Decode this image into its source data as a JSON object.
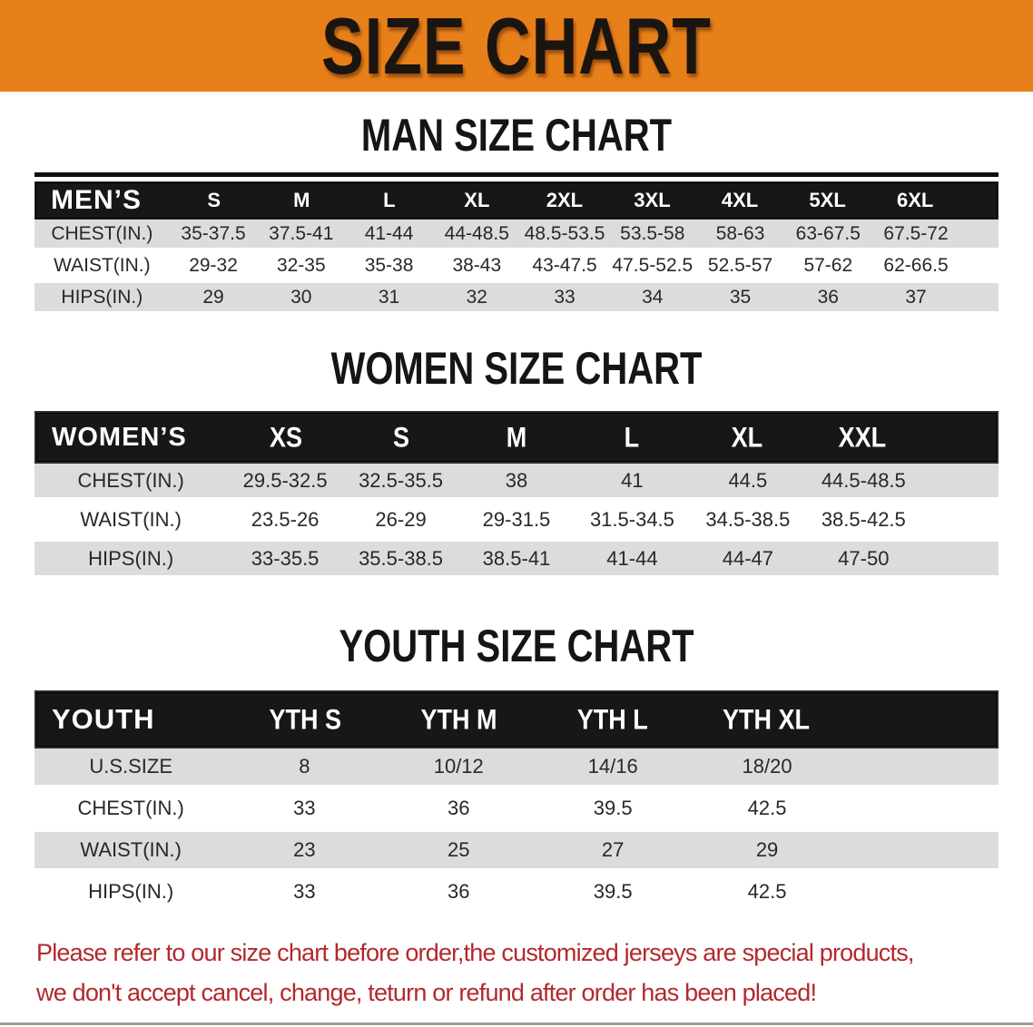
{
  "banner": {
    "title": "SIZE CHART"
  },
  "sections": [
    {
      "heading": "MAN SIZE CHART",
      "table": {
        "header_label": "MEN’S",
        "columns": [
          "S",
          "M",
          "L",
          "XL",
          "2XL",
          "3XL",
          "4XL",
          "5XL",
          "6XL"
        ],
        "rows": [
          {
            "label": "CHEST(IN.)",
            "values": [
              "35-37.5",
              "37.5-41",
              "41-44",
              "44-48.5",
              "48.5-53.5",
              "53.5-58",
              "58-63",
              "63-67.5",
              "67.5-72"
            ]
          },
          {
            "label": "WAIST(IN.)",
            "values": [
              "29-32",
              "32-35",
              "35-38",
              "38-43",
              "43-47.5",
              "47.5-52.5",
              "52.5-57",
              "57-62",
              "62-66.5"
            ]
          },
          {
            "label": "HIPS(IN.)",
            "values": [
              "29",
              "30",
              "31",
              "32",
              "33",
              "34",
              "35",
              "36",
              "37"
            ]
          }
        ]
      }
    },
    {
      "heading": "WOMEN SIZE CHART",
      "table": {
        "header_label": "WOMEN’S",
        "columns": [
          "XS",
          "S",
          "M",
          "L",
          "XL",
          "XXL"
        ],
        "rows": [
          {
            "label": "CHEST(IN.)",
            "values": [
              "29.5-32.5",
              "32.5-35.5",
              "38",
              "41",
              "44.5",
              "44.5-48.5"
            ]
          },
          {
            "label": "WAIST(IN.)",
            "values": [
              "23.5-26",
              "26-29",
              "29-31.5",
              "31.5-34.5",
              "34.5-38.5",
              "38.5-42.5"
            ]
          },
          {
            "label": "HIPS(IN.)",
            "values": [
              "33-35.5",
              "35.5-38.5",
              "38.5-41",
              "41-44",
              "44-47",
              "47-50"
            ]
          }
        ]
      }
    },
    {
      "heading": "YOUTH SIZE CHART",
      "table": {
        "header_label": "YOUTH",
        "columns": [
          "YTH S",
          "YTH M",
          "YTH L",
          "YTH XL"
        ],
        "rows": [
          {
            "label": "U.S.SIZE",
            "values": [
              "8",
              "10/12",
              "14/16",
              "18/20"
            ]
          },
          {
            "label": "CHEST(IN.)",
            "values": [
              "33",
              "36",
              "39.5",
              "42.5"
            ]
          },
          {
            "label": "WAIST(IN.)",
            "values": [
              "23",
              "25",
              "27",
              "29"
            ]
          },
          {
            "label": "HIPS(IN.)",
            "values": [
              "33",
              "36",
              "39.5",
              "42.5"
            ]
          }
        ]
      }
    }
  ],
  "footer": {
    "lines": [
      "Please refer to our size chart before order,the customized jerseys are special products,",
      "we don't accept cancel, change, teturn or refund after order has been placed!"
    ]
  },
  "colors": {
    "banner_orange": "#E8801A",
    "bar_black": "#191715",
    "stripe_gray": "#DCDCDC",
    "disclaimer_red": "#B2292C"
  }
}
